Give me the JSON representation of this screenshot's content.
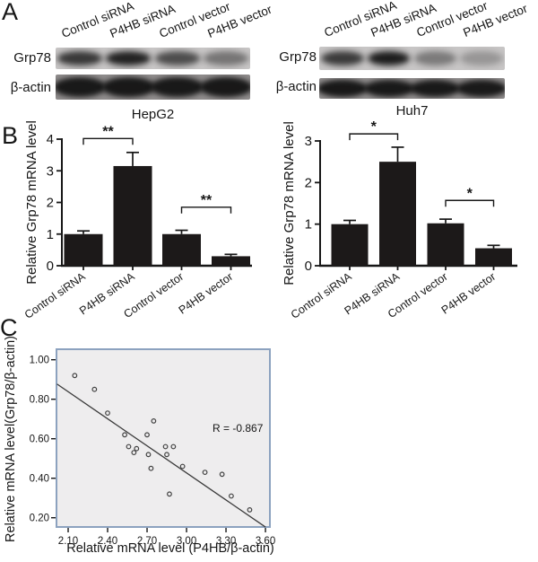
{
  "figure": {
    "panel_letters": {
      "a": "A",
      "b": "B",
      "c": "C"
    }
  },
  "panel_a": {
    "lane_labels": [
      "Control siRNA",
      "P4HB siRNA",
      "Control vector",
      "P4HB vector"
    ],
    "blots": [
      {
        "cell_line": "HepG2",
        "rows": [
          {
            "label": "Grp78",
            "band_intensities": [
              0.8,
              0.92,
              0.68,
              0.45
            ]
          },
          {
            "label": "β-actin",
            "band_intensities": [
              0.95,
              0.96,
              0.95,
              0.96
            ]
          }
        ]
      },
      {
        "cell_line": "Huh7",
        "rows": [
          {
            "label": "Grp78",
            "band_intensities": [
              0.78,
              0.95,
              0.42,
              0.26
            ]
          },
          {
            "label": "β-actin",
            "band_intensities": [
              0.96,
              0.95,
              0.95,
              0.94
            ]
          }
        ]
      }
    ]
  },
  "chart_data": [
    {
      "type": "bar",
      "title": "HepG2",
      "ylabel": "Relative Grp78 mRNA level",
      "categories": [
        "Control siRNA",
        "P4HB siRNA",
        "Control vector",
        "P4HB vector"
      ],
      "values": [
        1.0,
        3.15,
        1.0,
        0.3
      ],
      "errors": [
        0.1,
        0.43,
        0.12,
        0.06
      ],
      "ylim": [
        0,
        4
      ],
      "yticks": [
        0,
        1,
        2,
        3,
        4
      ],
      "significance": [
        {
          "pair": [
            0,
            1
          ],
          "label": "**",
          "y": 4.02
        },
        {
          "pair": [
            2,
            3
          ],
          "label": "**",
          "y": 1.85
        }
      ]
    },
    {
      "type": "bar",
      "title": "Huh7",
      "ylabel": "Relative Grp78 mRNA level",
      "categories": [
        "Control siRNA",
        "P4HB siRNA",
        "Control vector",
        "P4HB vector"
      ],
      "values": [
        1.0,
        2.5,
        1.02,
        0.42
      ],
      "errors": [
        0.09,
        0.35,
        0.1,
        0.07
      ],
      "ylim": [
        0,
        3
      ],
      "yticks": [
        0,
        1,
        2,
        3
      ],
      "significance": [
        {
          "pair": [
            0,
            1
          ],
          "label": "*",
          "y": 3.17
        },
        {
          "pair": [
            2,
            3
          ],
          "label": "*",
          "y": 1.57
        }
      ]
    },
    {
      "type": "scatter",
      "xlabel": "Relative mRNA level (P4HB/β-actin)",
      "ylabel": "Relative mRNA level(Grp78/β-actin)",
      "annotation": "R = -0.867",
      "xticks": [
        2.1,
        2.4,
        2.7,
        3.0,
        3.3,
        3.6
      ],
      "xtick_labels": [
        "2.10",
        "2.40",
        "2.70",
        "3.00",
        "3.30",
        "3.60"
      ],
      "yticks": [
        0.2,
        0.4,
        0.6,
        0.8,
        1.0
      ],
      "ytick_labels": [
        "0.20",
        "0.40",
        "0.60",
        "0.80",
        "1.00"
      ],
      "xlim": [
        2.01,
        3.63
      ],
      "ylim": [
        0.15,
        1.05
      ],
      "grid": false,
      "points": [
        [
          2.15,
          0.92
        ],
        [
          2.3,
          0.85
        ],
        [
          2.4,
          0.73
        ],
        [
          2.75,
          0.69
        ],
        [
          2.53,
          0.62
        ],
        [
          2.7,
          0.62
        ],
        [
          2.56,
          0.56
        ],
        [
          2.6,
          0.53
        ],
        [
          2.62,
          0.55
        ],
        [
          2.71,
          0.52
        ],
        [
          2.73,
          0.45
        ],
        [
          2.84,
          0.56
        ],
        [
          2.9,
          0.56
        ],
        [
          2.85,
          0.52
        ],
        [
          2.97,
          0.46
        ],
        [
          2.87,
          0.32
        ],
        [
          3.14,
          0.43
        ],
        [
          3.27,
          0.42
        ],
        [
          3.34,
          0.31
        ],
        [
          3.48,
          0.24
        ]
      ],
      "regression_line": {
        "x1": 2.015,
        "y1": 0.877,
        "x2": 3.6,
        "y2": 0.153
      }
    }
  ],
  "colors": {
    "axis": "#161616",
    "bar_fill": "#1c1919",
    "scatter_bg": "#eeedee",
    "scatter_frame": "#8ca2bf",
    "point_stroke": "#414141",
    "regression_line": "#3a3a3a"
  }
}
